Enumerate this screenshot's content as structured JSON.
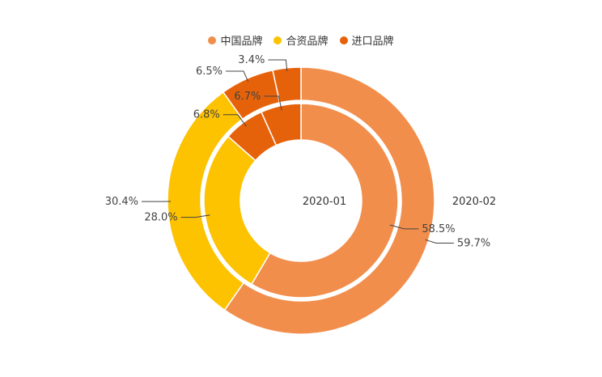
{
  "chart_data": {
    "type": "pie",
    "variant": "nested-donut",
    "legend_position": "top-center",
    "categories": [
      "中国品牌",
      "合资品牌",
      "进口品牌"
    ],
    "colors": [
      "#f28e4c",
      "#fdc200",
      "#e6620a"
    ],
    "series": [
      {
        "name": "2020-01",
        "ring": "inner",
        "values": [
          58.5,
          28.0,
          6.8
        ]
      },
      {
        "name": "2020-02",
        "ring": "outer",
        "values": [
          59.7,
          30.4,
          6.5
        ]
      }
    ],
    "data_labels": {
      "inner": [
        "58.5%",
        "28.0%",
        "6.8%",
        "6.7%"
      ],
      "outer": [
        "59.7%",
        "30.4%",
        "6.5%",
        "3.4%"
      ]
    },
    "extra_slices": {
      "inner": {
        "value": 6.7,
        "color": "#e6620a"
      },
      "outer": {
        "value": 3.4,
        "color": "#e6620a"
      }
    }
  }
}
